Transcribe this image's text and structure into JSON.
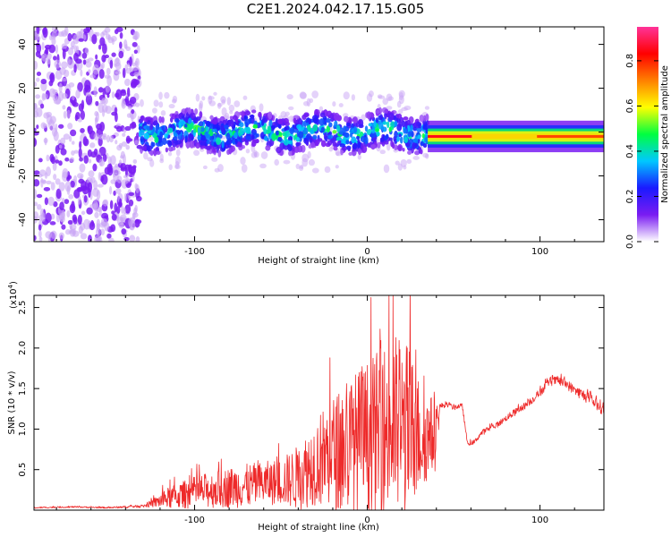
{
  "title": "C2E1.2024.042.17.15.G05",
  "colors": {
    "snr_line": "#ee2a2a",
    "axis": "#000000",
    "noise_purple": "#7a1cf2",
    "noise_light": "#c9a6f5"
  },
  "chart_data": [
    {
      "type": "heatmap",
      "xlabel": "Height of straight line (km)",
      "ylabel": "Frequency (Hz)",
      "xlim": [
        -193,
        137
      ],
      "ylim": [
        -50,
        48
      ],
      "x_ticks": [
        -100,
        0,
        100
      ],
      "x_tick_labels": [
        "-100",
        "0",
        "100"
      ],
      "y_ticks": [
        -40,
        -20,
        0,
        20,
        40
      ],
      "y_tick_labels": [
        "-40",
        "-20",
        "0",
        "20",
        "40"
      ],
      "grid": false,
      "colorbar": {
        "label": "Normalized spectral amplitude",
        "range": [
          0,
          0.95
        ],
        "ticks": [
          0.0,
          0.2,
          0.4,
          0.6,
          0.8
        ],
        "tick_labels": [
          "0.0",
          "0.2",
          "0.4",
          "0.6",
          "0.8"
        ],
        "colormap": [
          "#ffffff",
          "#7a1cf2",
          "#1a1aff",
          "#00c8ff",
          "#00ff40",
          "#ffff00",
          "#ff8000",
          "#ff0000",
          "#ff3399"
        ]
      },
      "regions": [
        {
          "name": "noise",
          "x_range": [
            -193,
            -132
          ],
          "amplitude": 0.1
        },
        {
          "name": "signal_band",
          "x_range": [
            -132,
            35
          ],
          "center_hz": 0,
          "half_width_hz": 8,
          "peak_amplitude": 0.45
        },
        {
          "name": "narrow_band",
          "x_range": [
            35,
            137
          ],
          "center_hz": -2,
          "half_width_hz": 3,
          "peak_amplitude": 0.85
        }
      ]
    },
    {
      "type": "line",
      "xlabel": "Height of straight line (km)",
      "ylabel": "SNR (10 * v/v)",
      "y_multiplier_label": "(x10",
      "y_multiplier_exp": "4",
      "xlim": [
        -193,
        137
      ],
      "ylim": [
        0,
        2.65
      ],
      "x_ticks": [
        -100,
        0,
        100
      ],
      "x_tick_labels": [
        "-100",
        "0",
        "100"
      ],
      "y_ticks": [
        0.5,
        1.0,
        1.5,
        2.0,
        2.5
      ],
      "y_tick_labels": [
        "0.5",
        "1.0",
        "1.5",
        "2.0",
        "2.5"
      ],
      "grid": false,
      "series": [
        {
          "color": "#ee2a2a",
          "x": [
            -193,
            -170,
            -150,
            -130,
            -125,
            -115,
            -100,
            -90,
            -80,
            -70,
            -60,
            -50,
            -40,
            -30,
            -20,
            -15,
            -10,
            -5,
            0,
            5,
            10,
            15,
            20,
            25,
            30,
            35,
            40,
            42,
            45,
            50,
            55,
            58,
            62,
            66,
            70,
            75,
            80,
            85,
            90,
            95,
            100,
            105,
            110,
            115,
            120,
            125,
            130,
            137
          ],
          "y": [
            0.03,
            0.04,
            0.03,
            0.05,
            0.08,
            0.15,
            0.22,
            0.25,
            0.28,
            0.3,
            0.33,
            0.35,
            0.4,
            0.6,
            0.7,
            0.72,
            0.8,
            0.85,
            0.9,
            0.95,
            1.0,
            1.02,
            1.0,
            0.95,
            0.92,
            0.9,
            0.95,
            1.28,
            1.3,
            1.27,
            1.29,
            0.82,
            0.84,
            0.95,
            1.0,
            1.05,
            1.13,
            1.2,
            1.27,
            1.35,
            1.45,
            1.58,
            1.6,
            1.56,
            1.48,
            1.42,
            1.35,
            1.25
          ],
          "spread": [
            0.01,
            0.01,
            0.01,
            0.02,
            0.05,
            0.15,
            0.22,
            0.25,
            0.28,
            0.3,
            0.3,
            0.32,
            0.45,
            0.6,
            0.8,
            0.85,
            0.95,
            1.0,
            1.05,
            1.1,
            1.2,
            1.3,
            1.3,
            1.2,
            0.8,
            0.6,
            0.5,
            0.04,
            0.04,
            0.04,
            0.03,
            0.03,
            0.03,
            0.04,
            0.04,
            0.04,
            0.04,
            0.05,
            0.05,
            0.05,
            0.06,
            0.06,
            0.06,
            0.07,
            0.07,
            0.08,
            0.08,
            0.1
          ]
        }
      ]
    }
  ]
}
